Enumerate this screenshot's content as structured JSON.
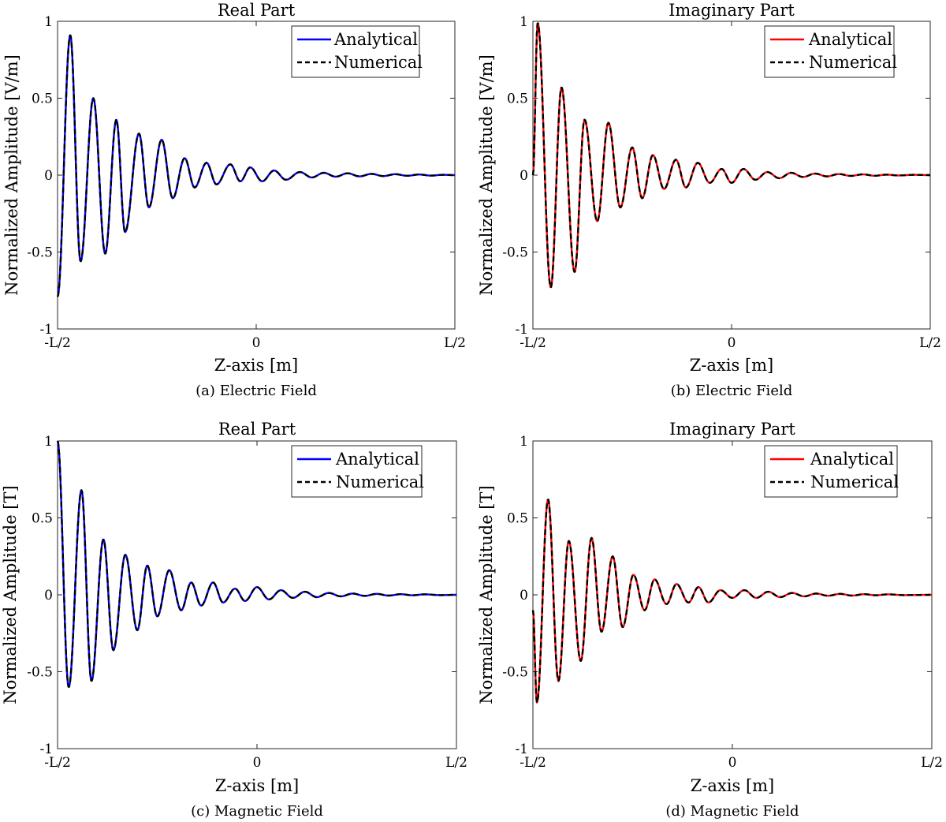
{
  "figure": {
    "legend_labels": [
      "Analytical",
      "Numerical"
    ],
    "colors": {
      "analytical_real": "#0000ff",
      "analytical_imag": "#ff0000",
      "numerical": "#000000",
      "axes": "#262626"
    }
  },
  "chart_data": [
    {
      "id": "a",
      "type": "line",
      "title": "Real Part",
      "caption": "(a) Electric Field",
      "xlabel": "Z-axis [m]",
      "ylabel": "Normalized Amplitude [V/m]",
      "xlim": [
        -0.5,
        0.5
      ],
      "ylim": [
        -1,
        1
      ],
      "xticks": [
        -0.5,
        0,
        0.5
      ],
      "xtick_labels": [
        "-L/2",
        "0",
        "L/2"
      ],
      "yticks": [
        -1,
        -0.5,
        0,
        0.5,
        1
      ],
      "ytick_labels": [
        "-1",
        "-0.5",
        "0",
        "0.5",
        "1"
      ],
      "legend": "top-right",
      "grid": false,
      "series": [
        {
          "name": "Analytical",
          "style": "solid",
          "color": "#0000ff"
        },
        {
          "name": "Numerical",
          "style": "dashed",
          "color": "#000000"
        }
      ],
      "extrema": [
        {
          "x": -0.5,
          "y": -0.79
        },
        {
          "x": -0.468,
          "y": 0.91
        },
        {
          "x": -0.442,
          "y": -0.56
        },
        {
          "x": -0.41,
          "y": 0.5
        },
        {
          "x": -0.38,
          "y": -0.51
        },
        {
          "x": -0.352,
          "y": 0.36
        },
        {
          "x": -0.33,
          "y": -0.37
        },
        {
          "x": -0.295,
          "y": 0.27
        },
        {
          "x": -0.27,
          "y": -0.21
        },
        {
          "x": -0.238,
          "y": 0.23
        },
        {
          "x": -0.21,
          "y": -0.15
        },
        {
          "x": -0.18,
          "y": 0.11
        },
        {
          "x": -0.155,
          "y": -0.08
        },
        {
          "x": -0.125,
          "y": 0.08
        },
        {
          "x": -0.1,
          "y": -0.06
        },
        {
          "x": -0.065,
          "y": 0.07
        },
        {
          "x": -0.04,
          "y": -0.04
        },
        {
          "x": -0.015,
          "y": 0.05
        },
        {
          "x": 0.015,
          "y": -0.04
        },
        {
          "x": 0.045,
          "y": 0.03
        },
        {
          "x": 0.075,
          "y": -0.03
        },
        {
          "x": 0.11,
          "y": 0.02
        },
        {
          "x": 0.14,
          "y": -0.015
        },
        {
          "x": 0.17,
          "y": 0.015
        },
        {
          "x": 0.2,
          "y": -0.01
        },
        {
          "x": 0.23,
          "y": 0.012
        },
        {
          "x": 0.26,
          "y": -0.008
        },
        {
          "x": 0.29,
          "y": 0.008
        },
        {
          "x": 0.32,
          "y": -0.006
        },
        {
          "x": 0.35,
          "y": 0.006
        },
        {
          "x": 0.38,
          "y": -0.004
        },
        {
          "x": 0.41,
          "y": 0.004
        },
        {
          "x": 0.44,
          "y": -0.003
        },
        {
          "x": 0.47,
          "y": 0.002
        },
        {
          "x": 0.5,
          "y": 0.0
        }
      ]
    },
    {
      "id": "b",
      "type": "line",
      "title": "Imaginary Part",
      "caption": "(b) Electric Field",
      "xlabel": "Z-axis [m]",
      "ylabel": "Normalized Amplitude [V/m]",
      "xlim": [
        -0.5,
        0.5
      ],
      "ylim": [
        -1,
        1
      ],
      "xticks": [
        -0.5,
        0,
        0.5
      ],
      "xtick_labels": [
        "-L/2",
        "0",
        "L/2"
      ],
      "yticks": [
        -1,
        -0.5,
        0,
        0.5,
        1
      ],
      "ytick_labels": [
        "-1",
        "-0.5",
        "0",
        "0.5",
        "1"
      ],
      "legend": "top-right",
      "grid": false,
      "series": [
        {
          "name": "Analytical",
          "style": "solid",
          "color": "#ff0000"
        },
        {
          "name": "Numerical",
          "style": "dashed",
          "color": "#000000"
        }
      ],
      "extrema": [
        {
          "x": -0.5,
          "y": 0.0
        },
        {
          "x": -0.488,
          "y": 0.99
        },
        {
          "x": -0.455,
          "y": -0.73
        },
        {
          "x": -0.428,
          "y": 0.57
        },
        {
          "x": -0.395,
          "y": -0.63
        },
        {
          "x": -0.37,
          "y": 0.36
        },
        {
          "x": -0.338,
          "y": -0.3
        },
        {
          "x": -0.31,
          "y": 0.34
        },
        {
          "x": -0.28,
          "y": -0.21
        },
        {
          "x": -0.25,
          "y": 0.18
        },
        {
          "x": -0.225,
          "y": -0.15
        },
        {
          "x": -0.198,
          "y": 0.13
        },
        {
          "x": -0.17,
          "y": -0.09
        },
        {
          "x": -0.14,
          "y": 0.1
        },
        {
          "x": -0.115,
          "y": -0.08
        },
        {
          "x": -0.085,
          "y": 0.08
        },
        {
          "x": -0.055,
          "y": -0.05
        },
        {
          "x": -0.025,
          "y": 0.04
        },
        {
          "x": 0.0,
          "y": -0.05
        },
        {
          "x": 0.03,
          "y": 0.04
        },
        {
          "x": 0.06,
          "y": -0.03
        },
        {
          "x": 0.09,
          "y": 0.02
        },
        {
          "x": 0.12,
          "y": -0.02
        },
        {
          "x": 0.15,
          "y": 0.015
        },
        {
          "x": 0.18,
          "y": -0.012
        },
        {
          "x": 0.21,
          "y": 0.01
        },
        {
          "x": 0.24,
          "y": -0.008
        },
        {
          "x": 0.27,
          "y": 0.007
        },
        {
          "x": 0.3,
          "y": -0.005
        },
        {
          "x": 0.33,
          "y": 0.005
        },
        {
          "x": 0.36,
          "y": -0.004
        },
        {
          "x": 0.39,
          "y": 0.003
        },
        {
          "x": 0.42,
          "y": -0.002
        },
        {
          "x": 0.46,
          "y": 0.002
        },
        {
          "x": 0.5,
          "y": 0.0
        }
      ]
    },
    {
      "id": "c",
      "type": "line",
      "title": "Real Part",
      "caption": "(c) Magnetic Field",
      "xlabel": "Z-axis [m]",
      "ylabel": "Normalized Amplitude [T]",
      "xlim": [
        -0.5,
        0.5
      ],
      "ylim": [
        -1,
        1
      ],
      "xticks": [
        -0.5,
        0,
        0.5
      ],
      "xtick_labels": [
        "-L/2",
        "0",
        "L/2"
      ],
      "yticks": [
        -1,
        -0.5,
        0,
        0.5,
        1
      ],
      "ytick_labels": [
        "-1",
        "-0.5",
        "0",
        "0.5",
        "1"
      ],
      "legend": "top-right",
      "grid": false,
      "series": [
        {
          "name": "Analytical",
          "style": "solid",
          "color": "#0000ff"
        },
        {
          "name": "Numerical",
          "style": "dashed",
          "color": "#000000"
        }
      ],
      "extrema": [
        {
          "x": -0.5,
          "y": 1.0
        },
        {
          "x": -0.472,
          "y": -0.6
        },
        {
          "x": -0.44,
          "y": 0.68
        },
        {
          "x": -0.415,
          "y": -0.56
        },
        {
          "x": -0.385,
          "y": 0.36
        },
        {
          "x": -0.36,
          "y": -0.36
        },
        {
          "x": -0.33,
          "y": 0.26
        },
        {
          "x": -0.3,
          "y": -0.23
        },
        {
          "x": -0.275,
          "y": 0.19
        },
        {
          "x": -0.25,
          "y": -0.14
        },
        {
          "x": -0.22,
          "y": 0.16
        },
        {
          "x": -0.19,
          "y": -0.1
        },
        {
          "x": -0.165,
          "y": 0.08
        },
        {
          "x": -0.14,
          "y": -0.07
        },
        {
          "x": -0.11,
          "y": 0.08
        },
        {
          "x": -0.085,
          "y": -0.05
        },
        {
          "x": -0.055,
          "y": 0.04
        },
        {
          "x": -0.03,
          "y": -0.04
        },
        {
          "x": 0.0,
          "y": 0.05
        },
        {
          "x": 0.03,
          "y": -0.03
        },
        {
          "x": 0.06,
          "y": 0.03
        },
        {
          "x": 0.09,
          "y": -0.02
        },
        {
          "x": 0.12,
          "y": 0.02
        },
        {
          "x": 0.15,
          "y": -0.015
        },
        {
          "x": 0.18,
          "y": 0.012
        },
        {
          "x": 0.21,
          "y": -0.01
        },
        {
          "x": 0.24,
          "y": 0.008
        },
        {
          "x": 0.27,
          "y": -0.007
        },
        {
          "x": 0.3,
          "y": 0.006
        },
        {
          "x": 0.33,
          "y": -0.005
        },
        {
          "x": 0.36,
          "y": 0.004
        },
        {
          "x": 0.39,
          "y": -0.003
        },
        {
          "x": 0.42,
          "y": 0.003
        },
        {
          "x": 0.46,
          "y": -0.002
        },
        {
          "x": 0.5,
          "y": 0.0
        }
      ]
    },
    {
      "id": "d",
      "type": "line",
      "title": "Imaginary Part",
      "caption": "(d) Magnetic Field",
      "xlabel": "Z-axis [m]",
      "ylabel": "Normalized Amplitude [T]",
      "xlim": [
        -0.5,
        0.5
      ],
      "ylim": [
        -1,
        1
      ],
      "xticks": [
        -0.5,
        0,
        0.5
      ],
      "xtick_labels": [
        "-L/2",
        "0",
        "L/2"
      ],
      "yticks": [
        -1,
        -0.5,
        0,
        0.5,
        1
      ],
      "ytick_labels": [
        "-1",
        "-0.5",
        "0",
        "0.5",
        "1"
      ],
      "legend": "top-right",
      "grid": false,
      "series": [
        {
          "name": "Analytical",
          "style": "solid",
          "color": "#ff0000"
        },
        {
          "name": "Numerical",
          "style": "dashed",
          "color": "#000000"
        }
      ],
      "extrema": [
        {
          "x": -0.5,
          "y": -0.1
        },
        {
          "x": -0.49,
          "y": -0.7
        },
        {
          "x": -0.462,
          "y": 0.62
        },
        {
          "x": -0.436,
          "y": -0.56
        },
        {
          "x": -0.41,
          "y": 0.35
        },
        {
          "x": -0.38,
          "y": -0.43
        },
        {
          "x": -0.353,
          "y": 0.37
        },
        {
          "x": -0.328,
          "y": -0.24
        },
        {
          "x": -0.3,
          "y": 0.25
        },
        {
          "x": -0.275,
          "y": -0.21
        },
        {
          "x": -0.248,
          "y": 0.13
        },
        {
          "x": -0.22,
          "y": -0.1
        },
        {
          "x": -0.195,
          "y": 0.1
        },
        {
          "x": -0.165,
          "y": -0.06
        },
        {
          "x": -0.14,
          "y": 0.07
        },
        {
          "x": -0.11,
          "y": -0.05
        },
        {
          "x": -0.085,
          "y": 0.05
        },
        {
          "x": -0.06,
          "y": -0.05
        },
        {
          "x": -0.03,
          "y": 0.03
        },
        {
          "x": 0.0,
          "y": -0.02
        },
        {
          "x": 0.03,
          "y": 0.03
        },
        {
          "x": 0.06,
          "y": -0.02
        },
        {
          "x": 0.09,
          "y": 0.02
        },
        {
          "x": 0.12,
          "y": -0.015
        },
        {
          "x": 0.15,
          "y": 0.012
        },
        {
          "x": 0.18,
          "y": -0.01
        },
        {
          "x": 0.21,
          "y": 0.008
        },
        {
          "x": 0.24,
          "y": -0.006
        },
        {
          "x": 0.27,
          "y": 0.006
        },
        {
          "x": 0.3,
          "y": -0.005
        },
        {
          "x": 0.33,
          "y": 0.004
        },
        {
          "x": 0.36,
          "y": -0.003
        },
        {
          "x": 0.39,
          "y": 0.003
        },
        {
          "x": 0.43,
          "y": -0.002
        },
        {
          "x": 0.5,
          "y": 0.0
        }
      ]
    }
  ]
}
